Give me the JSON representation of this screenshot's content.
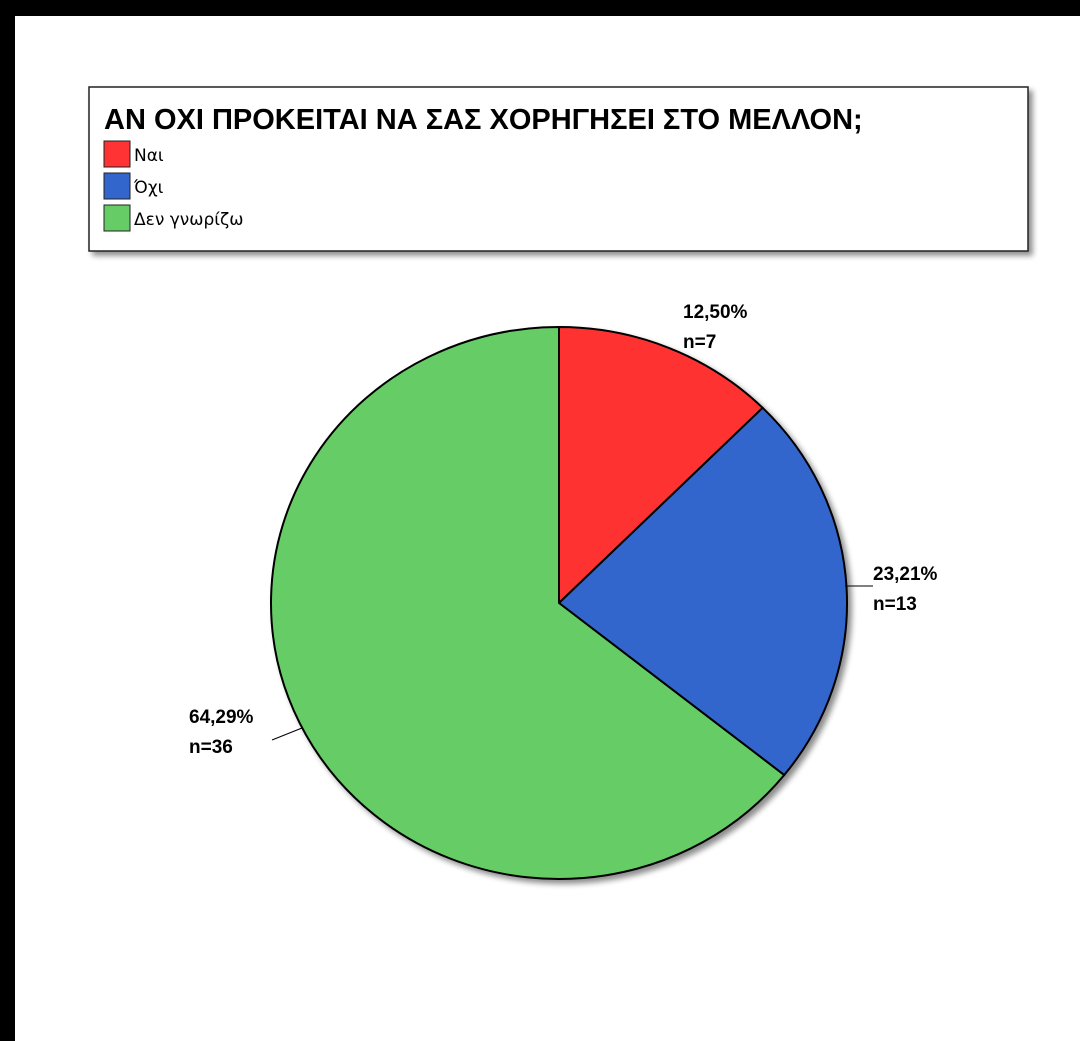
{
  "chart_data": {
    "type": "pie",
    "title": "ΑΝ ΟΧΙ ΠΡΟΚΕΙΤΑΙ ΝΑ ΣΑΣ ΧΟΡΗΓΗΣΕΙ ΣΤΟ ΜΕΛΛΟΝ;",
    "legend_position": "top-left",
    "categories": [
      "Ναι",
      "Όχι",
      "Δεν γνωρίζω"
    ],
    "values": [
      12.5,
      23.21,
      64.29
    ],
    "counts": [
      7,
      13,
      36
    ],
    "percent_labels": [
      "12,50%",
      "23,21%",
      "64,29%"
    ],
    "count_labels": [
      "n=7",
      "n=13",
      "n=36"
    ],
    "colors": [
      "#ff3333",
      "#3366cc",
      "#66cc66"
    ]
  }
}
